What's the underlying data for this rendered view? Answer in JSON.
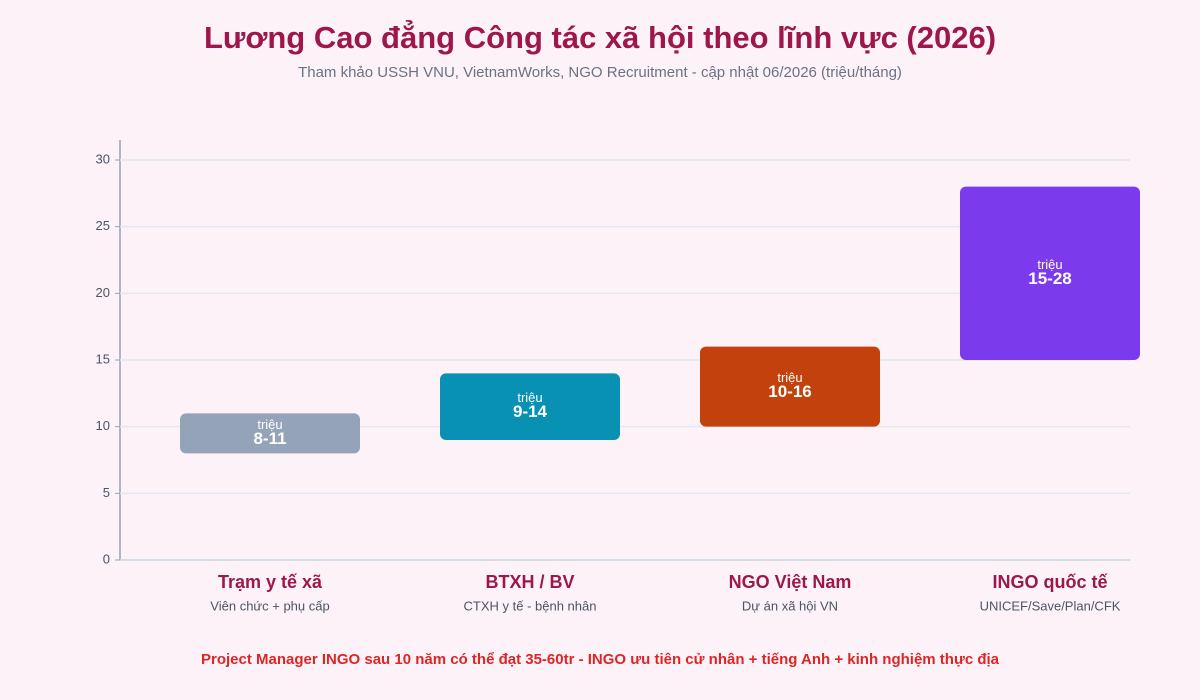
{
  "chart_data": {
    "type": "rangebar",
    "title": "Lương Cao đẳng Công tác xã hội theo lĩnh vực (2026)",
    "subtitle": "Tham khảo USSH VNU, VietnamWorks, NGO Recruitment - cập nhật 06/2026 (triệu/tháng)",
    "categories": [
      "Trạm y tế xã",
      "BTXH / BV",
      "NGO Việt Nam",
      "INGO quốc tế"
    ],
    "category_notes": [
      "Viên chức + phụ cấp",
      "CTXH y tế - bệnh nhân",
      "Dự án xã hội VN",
      "UNICEF/Save/Plan/CFK"
    ],
    "low": [
      8,
      9,
      10,
      15
    ],
    "high": [
      11,
      14,
      16,
      28
    ],
    "value_labels": [
      "8-11",
      "9-14",
      "10-16",
      "15-28"
    ],
    "unit_label": "triệu",
    "colors": [
      "#94a3b8",
      "#0891b2",
      "#c2410c",
      "#7c3aed"
    ],
    "ylim": [
      0,
      31.5
    ],
    "yticks": [
      0,
      5,
      10,
      15,
      20,
      25,
      30
    ],
    "grid": true,
    "footnote": "Project Manager INGO sau 10 năm có thể đạt 35-60tr - INGO ưu tiên cử nhân + tiếng Anh + kinh nghiệm thực địa"
  }
}
